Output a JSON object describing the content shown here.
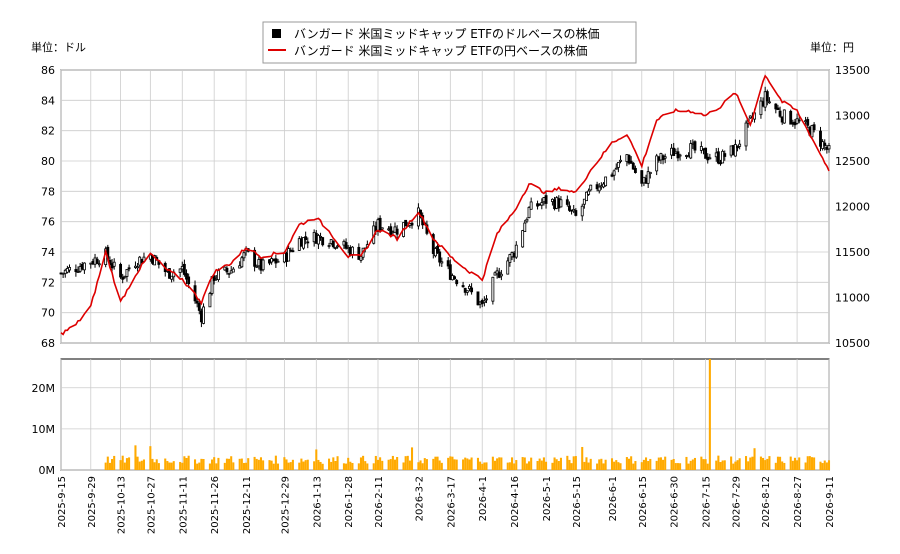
{
  "legend": {
    "dollar_label": "バンガード 米国ミッドキャップ ETFのドルベースの株価",
    "yen_label": "バンガード 米国ミッドキャップ ETFの円ベースの株価"
  },
  "left_unit": "単位：ドル",
  "right_unit": "単位：円",
  "colors": {
    "up_candle": "#ffffff",
    "down_candle": "#000000",
    "yen_line": "#dd0000",
    "volume": "#ffaa00",
    "grid": "#cccccc"
  },
  "chart_data": [
    {
      "type": "candlestick+line",
      "x_ticks": [
        "2025-9-15",
        "2025-9-29",
        "2025-10-13",
        "2025-10-27",
        "2025-11-11",
        "2025-11-26",
        "2025-12-11",
        "2025-12-29",
        "2026-1-13",
        "2026-1-28",
        "2026-2-11",
        "2026-3-2",
        "2026-3-17",
        "2026-4-1",
        "2026-4-16",
        "2026-5-1",
        "2026-5-15",
        "2026-6-1",
        "2026-6-15",
        "2026-6-30",
        "2026-7-15",
        "2026-7-29",
        "2026-8-12",
        "2026-8-27",
        "2026-9-11"
      ],
      "left_axis": {
        "ticks": [
          68,
          70,
          72,
          74,
          76,
          78,
          80,
          82,
          84,
          86
        ],
        "range": [
          68,
          86
        ]
      },
      "right_axis": {
        "ticks": [
          10500,
          11000,
          11500,
          12000,
          12500,
          13000,
          13500
        ],
        "range": [
          10500,
          13500
        ]
      },
      "grid": true,
      "dollar_series_anchors": [
        {
          "x": "2025-9-15",
          "y": 72.6
        },
        {
          "x": "2025-9-29",
          "y": 73.4
        },
        {
          "x": "2025-10-6",
          "y": 73.8
        },
        {
          "x": "2025-10-13",
          "y": 72.3
        },
        {
          "x": "2025-10-20",
          "y": 73.4
        },
        {
          "x": "2025-10-27",
          "y": 73.8
        },
        {
          "x": "2025-11-4",
          "y": 72.6
        },
        {
          "x": "2025-11-11",
          "y": 72.9
        },
        {
          "x": "2025-11-20",
          "y": 69.8
        },
        {
          "x": "2025-11-26",
          "y": 72.4
        },
        {
          "x": "2025-12-4",
          "y": 72.8
        },
        {
          "x": "2025-12-11",
          "y": 73.9
        },
        {
          "x": "2025-12-18",
          "y": 73.0
        },
        {
          "x": "2025-12-29",
          "y": 73.6
        },
        {
          "x": "2026-1-5",
          "y": 74.8
        },
        {
          "x": "2026-1-13",
          "y": 75.0
        },
        {
          "x": "2026-1-20",
          "y": 74.8
        },
        {
          "x": "2026-1-28",
          "y": 74.2
        },
        {
          "x": "2026-2-3",
          "y": 73.8
        },
        {
          "x": "2026-2-11",
          "y": 75.8
        },
        {
          "x": "2026-2-20",
          "y": 75.5
        },
        {
          "x": "2026-3-2",
          "y": 76.5
        },
        {
          "x": "2026-3-9",
          "y": 74.0
        },
        {
          "x": "2026-3-17",
          "y": 72.6
        },
        {
          "x": "2026-3-25",
          "y": 71.6
        },
        {
          "x": "2026-4-1",
          "y": 70.4
        },
        {
          "x": "2026-4-8",
          "y": 72.5
        },
        {
          "x": "2026-4-16",
          "y": 74.0
        },
        {
          "x": "2026-4-23",
          "y": 76.8
        },
        {
          "x": "2026-5-1",
          "y": 77.4
        },
        {
          "x": "2026-5-8",
          "y": 77.2
        },
        {
          "x": "2026-5-15",
          "y": 76.3
        },
        {
          "x": "2026-5-22",
          "y": 78.0
        },
        {
          "x": "2026-6-1",
          "y": 79.2
        },
        {
          "x": "2026-6-8",
          "y": 80.4
        },
        {
          "x": "2026-6-15",
          "y": 78.4
        },
        {
          "x": "2026-6-22",
          "y": 80.0
        },
        {
          "x": "2026-6-30",
          "y": 80.6
        },
        {
          "x": "2026-7-8",
          "y": 80.8
        },
        {
          "x": "2026-7-15",
          "y": 80.4
        },
        {
          "x": "2026-7-22",
          "y": 80.2
        },
        {
          "x": "2026-7-29",
          "y": 80.8
        },
        {
          "x": "2026-8-5",
          "y": 82.6
        },
        {
          "x": "2026-8-12",
          "y": 84.2
        },
        {
          "x": "2026-8-20",
          "y": 83.0
        },
        {
          "x": "2026-8-27",
          "y": 82.6
        },
        {
          "x": "2026-9-3",
          "y": 82.0
        },
        {
          "x": "2026-9-11",
          "y": 80.6
        }
      ],
      "yen_series_anchors": [
        {
          "x": "2025-9-15",
          "y": 10600
        },
        {
          "x": "2025-9-22",
          "y": 10700
        },
        {
          "x": "2025-9-29",
          "y": 10900
        },
        {
          "x": "2025-10-6",
          "y": 11500
        },
        {
          "x": "2025-10-13",
          "y": 10950
        },
        {
          "x": "2025-10-20",
          "y": 11250
        },
        {
          "x": "2025-10-27",
          "y": 11480
        },
        {
          "x": "2025-11-4",
          "y": 11300
        },
        {
          "x": "2025-11-11",
          "y": 11200
        },
        {
          "x": "2025-11-20",
          "y": 10950
        },
        {
          "x": "2025-11-26",
          "y": 11280
        },
        {
          "x": "2025-12-4",
          "y": 11380
        },
        {
          "x": "2025-12-11",
          "y": 11550
        },
        {
          "x": "2025-12-18",
          "y": 11450
        },
        {
          "x": "2025-12-29",
          "y": 11500
        },
        {
          "x": "2026-1-5",
          "y": 11800
        },
        {
          "x": "2026-1-13",
          "y": 11880
        },
        {
          "x": "2026-1-20",
          "y": 11700
        },
        {
          "x": "2026-1-28",
          "y": 11450
        },
        {
          "x": "2026-2-3",
          "y": 11450
        },
        {
          "x": "2026-2-11",
          "y": 11750
        },
        {
          "x": "2026-2-20",
          "y": 11650
        },
        {
          "x": "2026-3-2",
          "y": 11950
        },
        {
          "x": "2026-3-9",
          "y": 11650
        },
        {
          "x": "2026-3-17",
          "y": 11450
        },
        {
          "x": "2026-3-25",
          "y": 11300
        },
        {
          "x": "2026-4-1",
          "y": 11200
        },
        {
          "x": "2026-4-8",
          "y": 11700
        },
        {
          "x": "2026-4-16",
          "y": 11950
        },
        {
          "x": "2026-4-23",
          "y": 12250
        },
        {
          "x": "2026-5-1",
          "y": 12150
        },
        {
          "x": "2026-5-8",
          "y": 12200
        },
        {
          "x": "2026-5-15",
          "y": 12150
        },
        {
          "x": "2026-5-22",
          "y": 12400
        },
        {
          "x": "2026-6-1",
          "y": 12700
        },
        {
          "x": "2026-6-8",
          "y": 12800
        },
        {
          "x": "2026-6-15",
          "y": 12450
        },
        {
          "x": "2026-6-22",
          "y": 12950
        },
        {
          "x": "2026-6-30",
          "y": 13050
        },
        {
          "x": "2026-7-8",
          "y": 13050
        },
        {
          "x": "2026-7-15",
          "y": 13000
        },
        {
          "x": "2026-7-22",
          "y": 13100
        },
        {
          "x": "2026-7-29",
          "y": 13250
        },
        {
          "x": "2026-8-5",
          "y": 12900
        },
        {
          "x": "2026-8-12",
          "y": 13450
        },
        {
          "x": "2026-8-20",
          "y": 13150
        },
        {
          "x": "2026-8-27",
          "y": 13050
        },
        {
          "x": "2026-9-3",
          "y": 12750
        },
        {
          "x": "2026-9-11",
          "y": 12400
        }
      ]
    },
    {
      "type": "bar",
      "y_ticks": [
        "0M",
        "10M",
        "20M"
      ],
      "y_range": [
        0,
        27000000
      ],
      "volume_start": "2025-10-6",
      "volume_typical": 2500000,
      "volume_spikes": [
        {
          "x": "2025-10-20",
          "y": 6000000
        },
        {
          "x": "2025-10-27",
          "y": 5800000
        },
        {
          "x": "2026-1-13",
          "y": 5000000
        },
        {
          "x": "2026-2-27",
          "y": 5500000
        },
        {
          "x": "2026-5-18",
          "y": 5600000
        },
        {
          "x": "2026-7-17",
          "y": 27000000
        },
        {
          "x": "2026-8-7",
          "y": 5300000
        }
      ]
    }
  ]
}
